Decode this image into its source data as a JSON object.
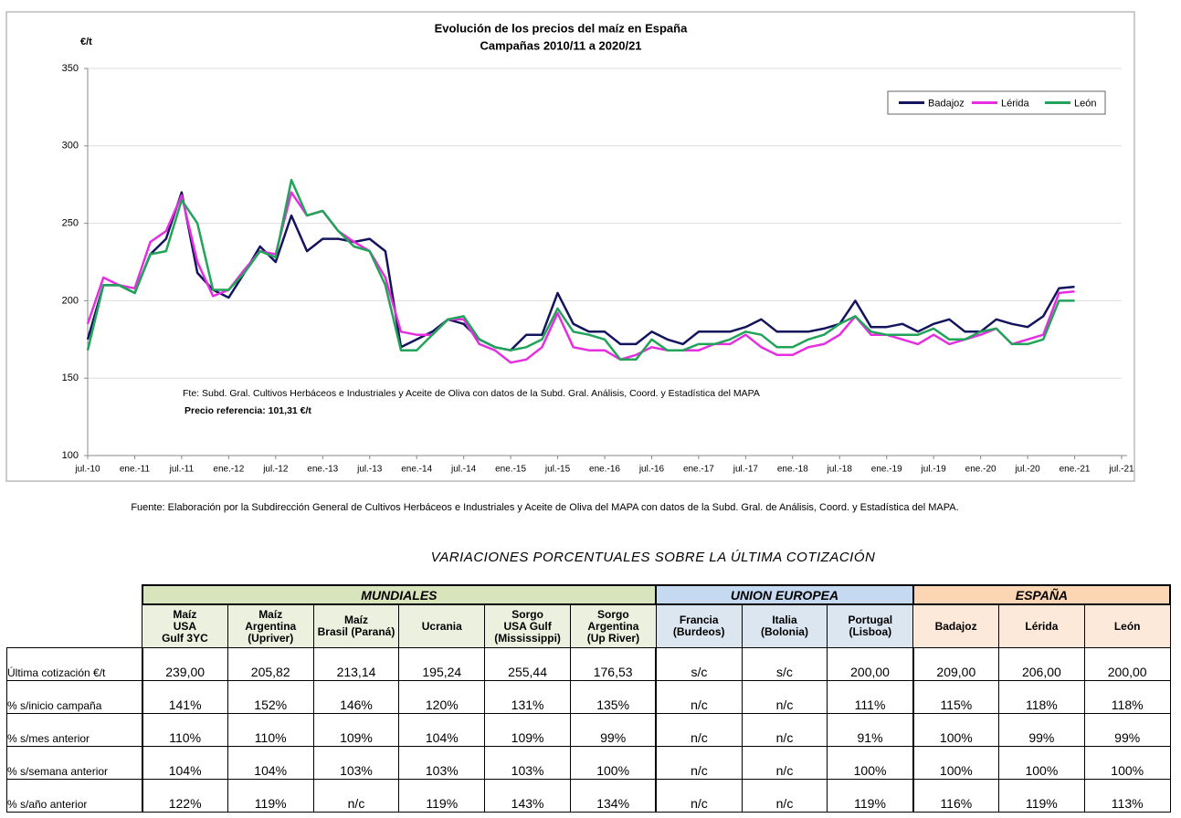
{
  "chart_data": {
    "type": "line",
    "title": "Evolución de los precios del maíz en España",
    "subtitle": "Campañas 2010/11 a 2020/21",
    "y_label": "€/t",
    "annotations": [
      "Fte: Subd. Gral. Cultivos Herbáceos e Industriales y Aceite de Oliva con datos de la Subd. Gral. Análisis, Coord. y Estadística del MAPA",
      "Precio referencia: 101,31 €/t"
    ],
    "x": [
      "2010-07",
      "2010-09",
      "2010-11",
      "2011-01",
      "2011-03",
      "2011-05",
      "2011-07",
      "2011-09",
      "2011-11",
      "2012-01",
      "2012-03",
      "2012-05",
      "2012-07",
      "2012-09",
      "2012-11",
      "2013-01",
      "2013-03",
      "2013-05",
      "2013-07",
      "2013-09",
      "2013-11",
      "2014-01",
      "2014-03",
      "2014-05",
      "2014-07",
      "2014-09",
      "2014-11",
      "2015-01",
      "2015-03",
      "2015-05",
      "2015-07",
      "2015-09",
      "2015-11",
      "2016-01",
      "2016-03",
      "2016-05",
      "2016-07",
      "2016-09",
      "2016-11",
      "2017-01",
      "2017-03",
      "2017-05",
      "2017-07",
      "2017-09",
      "2017-11",
      "2018-01",
      "2018-03",
      "2018-05",
      "2018-07",
      "2018-09",
      "2018-11",
      "2019-01",
      "2019-03",
      "2019-05",
      "2019-07",
      "2019-09",
      "2019-11",
      "2020-01",
      "2020-03",
      "2020-05",
      "2020-07",
      "2020-09",
      "2020-11",
      "2021-01"
    ],
    "series": [
      {
        "name": "Badajoz",
        "color": "#14145e",
        "values": [
          175,
          210,
          210,
          205,
          230,
          240,
          270,
          218,
          207,
          202,
          218,
          235,
          225,
          255,
          232,
          240,
          240,
          238,
          240,
          232,
          170,
          175,
          180,
          188,
          185,
          175,
          170,
          168,
          178,
          178,
          205,
          185,
          180,
          180,
          172,
          172,
          180,
          175,
          172,
          180,
          180,
          180,
          183,
          188,
          180,
          180,
          180,
          182,
          185,
          200,
          183,
          183,
          185,
          180,
          185,
          188,
          180,
          180,
          188,
          185,
          183,
          190,
          208,
          209
        ]
      },
      {
        "name": "Lérida",
        "color": "#e62ee0",
        "values": [
          185,
          215,
          210,
          208,
          238,
          245,
          268,
          225,
          203,
          207,
          220,
          232,
          230,
          270,
          255,
          258,
          245,
          238,
          232,
          215,
          180,
          178,
          178,
          188,
          188,
          172,
          168,
          160,
          162,
          170,
          192,
          170,
          168,
          168,
          162,
          165,
          170,
          168,
          168,
          168,
          172,
          172,
          178,
          170,
          165,
          165,
          170,
          172,
          178,
          190,
          178,
          178,
          175,
          172,
          178,
          172,
          175,
          178,
          182,
          172,
          175,
          178,
          205,
          206
        ]
      },
      {
        "name": "León",
        "color": "#22a35a",
        "values": [
          168,
          210,
          210,
          205,
          230,
          232,
          265,
          250,
          207,
          207,
          218,
          232,
          228,
          278,
          255,
          258,
          245,
          235,
          232,
          210,
          168,
          168,
          178,
          188,
          190,
          175,
          170,
          168,
          170,
          175,
          195,
          180,
          178,
          175,
          162,
          162,
          175,
          168,
          168,
          172,
          172,
          175,
          180,
          178,
          170,
          170,
          175,
          178,
          185,
          190,
          180,
          178,
          178,
          178,
          182,
          175,
          175,
          180,
          182,
          172,
          172,
          175,
          200,
          200
        ]
      }
    ],
    "xlim": [
      "2010-07",
      "2021-07"
    ],
    "xticks": [
      {
        "value": "2010-07",
        "label": "jul.-10"
      },
      {
        "value": "2011-01",
        "label": "ene.-11"
      },
      {
        "value": "2011-07",
        "label": "jul.-11"
      },
      {
        "value": "2012-01",
        "label": "ene.-12"
      },
      {
        "value": "2012-07",
        "label": "jul.-12"
      },
      {
        "value": "2013-01",
        "label": "ene.-13"
      },
      {
        "value": "2013-07",
        "label": "jul.-13"
      },
      {
        "value": "2014-01",
        "label": "ene.-14"
      },
      {
        "value": "2014-07",
        "label": "jul.-14"
      },
      {
        "value": "2015-01",
        "label": "ene.-15"
      },
      {
        "value": "2015-07",
        "label": "jul.-15"
      },
      {
        "value": "2016-01",
        "label": "ene.-16"
      },
      {
        "value": "2016-07",
        "label": "jul.-16"
      },
      {
        "value": "2017-01",
        "label": "ene.-17"
      },
      {
        "value": "2017-07",
        "label": "jul.-17"
      },
      {
        "value": "2018-01",
        "label": "ene.-18"
      },
      {
        "value": "2018-07",
        "label": "jul.-18"
      },
      {
        "value": "2019-01",
        "label": "ene.-19"
      },
      {
        "value": "2019-07",
        "label": "jul.-19"
      },
      {
        "value": "2020-01",
        "label": "ene.-20"
      },
      {
        "value": "2020-07",
        "label": "jul.-20"
      },
      {
        "value": "2021-01",
        "label": "ene.-21"
      },
      {
        "value": "2021-07",
        "label": "jul.-21"
      }
    ],
    "ylim": [
      100,
      350
    ],
    "yticks": [
      100,
      150,
      200,
      250,
      300,
      350
    ],
    "grid": true,
    "legend": "upper right"
  },
  "source": "Fuente: Elaboración por la Subdirección General de Cultivos Herbáceos e Industriales y Aceite de Oliva del MAPA con datos de la Subd. Gral. de Análisis, Coord. y Estadística del MAPA.",
  "table": {
    "title": "VARIACIONES PORCENTUALES SOBRE LA ÚLTIMA COTIZACIÓN",
    "groups": [
      "MUNDIALES",
      "UNION EUROPEA",
      "ESPAÑA"
    ],
    "columns": [
      "Maíz\nUSA\nGulf  3YC",
      "Maíz\nArgentina\n(Upriver)",
      "Maíz\nBrasil (Paraná)",
      "Ucrania",
      "Sorgo\nUSA Gulf\n(Mississippi)",
      "Sorgo\nArgentina\n(Up River)",
      "Francia\n(Burdeos)",
      "Italia\n(Bolonia)",
      "Portugal\n(Lisboa)",
      "Badajoz",
      "Lérida",
      "León"
    ],
    "rows": [
      [
        "Última cotización €/t",
        "239,00",
        "205,82",
        "213,14",
        "195,24",
        "255,44",
        "176,53",
        "s/c",
        "s/c",
        "200,00",
        "209,00",
        "206,00",
        "200,00"
      ],
      [
        "% s/inicio campaña",
        "141%",
        "152%",
        "146%",
        "120%",
        "131%",
        "135%",
        "n/c",
        "n/c",
        "111%",
        "115%",
        "118%",
        "118%"
      ],
      [
        "% s/mes anterior",
        "110%",
        "110%",
        "109%",
        "104%",
        "109%",
        "99%",
        "n/c",
        "n/c",
        "91%",
        "100%",
        "99%",
        "99%"
      ],
      [
        "% s/semana anterior",
        "104%",
        "104%",
        "103%",
        "103%",
        "103%",
        "100%",
        "n/c",
        "n/c",
        "100%",
        "100%",
        "100%",
        "100%"
      ],
      [
        "% s/año anterior",
        "122%",
        "119%",
        "n/c",
        "119%",
        "143%",
        "134%",
        "n/c",
        "n/c",
        "119%",
        "116%",
        "119%",
        "113%"
      ]
    ]
  }
}
